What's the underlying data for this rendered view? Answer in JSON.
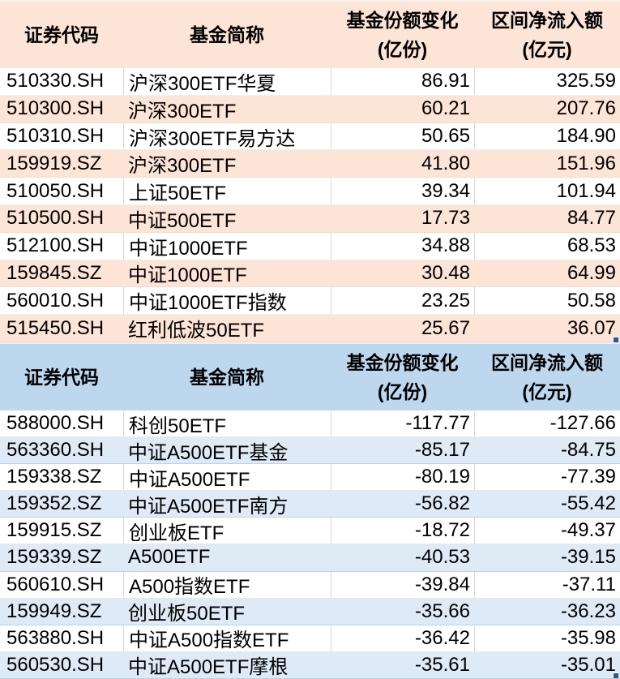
{
  "columns": {
    "code": "证券代码",
    "name": "基金简称",
    "share_change": {
      "line1": "基金份额变化",
      "line2": "(亿份)"
    },
    "net_inflow": {
      "line1": "区间净流入额",
      "line2": "(亿元)"
    }
  },
  "colors": {
    "inflow_band": "#FCE4D6",
    "inflow_header": "#FCE4D6",
    "outflow_band": "#DEEAF6",
    "outflow_header": "#BDD7EE",
    "grid_line": "#D9D9D9",
    "selection_handle": "#2F5597"
  },
  "tables": [
    {
      "name": "inflow-table",
      "rows": [
        {
          "code": "510330.SH",
          "name": "沪深300ETF华夏",
          "share_change": "86.91",
          "net_inflow": "325.59"
        },
        {
          "code": "510300.SH",
          "name": "沪深300ETF",
          "share_change": "60.21",
          "net_inflow": "207.76"
        },
        {
          "code": "510310.SH",
          "name": "沪深300ETF易方达",
          "share_change": "50.65",
          "net_inflow": "184.90"
        },
        {
          "code": "159919.SZ",
          "name": "沪深300ETF",
          "share_change": "41.80",
          "net_inflow": "151.96"
        },
        {
          "code": "510050.SH",
          "name": "上证50ETF",
          "share_change": "39.34",
          "net_inflow": "101.94"
        },
        {
          "code": "510500.SH",
          "name": "中证500ETF",
          "share_change": "17.73",
          "net_inflow": "84.77"
        },
        {
          "code": "512100.SH",
          "name": "中证1000ETF",
          "share_change": "34.88",
          "net_inflow": "68.53"
        },
        {
          "code": "159845.SZ",
          "name": "中证1000ETF",
          "share_change": "30.48",
          "net_inflow": "64.99"
        },
        {
          "code": "560010.SH",
          "name": "中证1000ETF指数",
          "share_change": "23.25",
          "net_inflow": "50.58"
        },
        {
          "code": "515450.SH",
          "name": "红利低波50ETF",
          "share_change": "25.67",
          "net_inflow": "36.07"
        }
      ]
    },
    {
      "name": "outflow-table",
      "rows": [
        {
          "code": "588000.SH",
          "name": "科创50ETF",
          "share_change": "-117.77",
          "net_inflow": "-127.66"
        },
        {
          "code": "563360.SH",
          "name": "中证A500ETF基金",
          "share_change": "-85.17",
          "net_inflow": "-84.75"
        },
        {
          "code": "159338.SZ",
          "name": "中证A500ETF",
          "share_change": "-80.19",
          "net_inflow": "-77.39"
        },
        {
          "code": "159352.SZ",
          "name": "中证A500ETF南方",
          "share_change": "-56.82",
          "net_inflow": "-55.42"
        },
        {
          "code": "159915.SZ",
          "name": "创业板ETF",
          "share_change": "-18.72",
          "net_inflow": "-49.37"
        },
        {
          "code": "159339.SZ",
          "name": "A500ETF",
          "share_change": "-40.53",
          "net_inflow": "-39.15"
        },
        {
          "code": "560610.SH",
          "name": "A500指数ETF",
          "share_change": "-39.84",
          "net_inflow": "-37.11"
        },
        {
          "code": "159949.SZ",
          "name": "创业板50ETF",
          "share_change": "-35.66",
          "net_inflow": "-36.23"
        },
        {
          "code": "563880.SH",
          "name": "中证A500指数ETF",
          "share_change": "-36.42",
          "net_inflow": "-35.98"
        },
        {
          "code": "560530.SH",
          "name": "中证A500ETF摩根",
          "share_change": "-35.61",
          "net_inflow": "-35.01"
        }
      ]
    }
  ]
}
